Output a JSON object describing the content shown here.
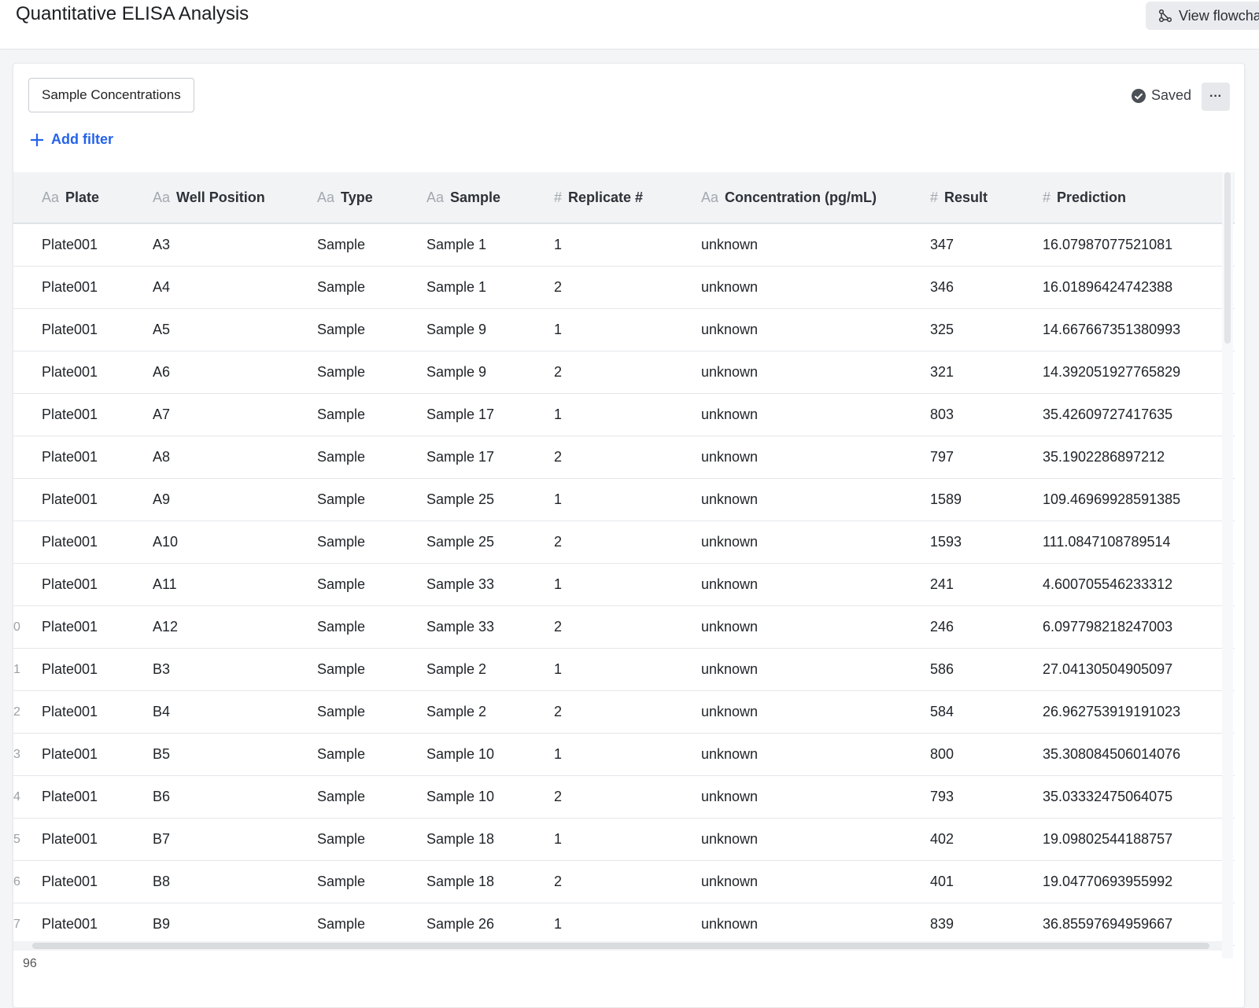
{
  "app": {
    "title": "Quantitative ELISA Analysis",
    "flowchart_button": "View flowchart"
  },
  "toolbar": {
    "view_name": "Sample Concentrations",
    "add_filter": "Add filter",
    "saved": "Saved",
    "more": "···"
  },
  "table": {
    "headers": [
      {
        "icon": "Aa",
        "label": "Plate"
      },
      {
        "icon": "Aa",
        "label": "Well Position"
      },
      {
        "icon": "Aa",
        "label": "Type"
      },
      {
        "icon": "Aa",
        "label": "Sample"
      },
      {
        "icon": "#",
        "label": "Replicate #"
      },
      {
        "icon": "Aa",
        "label": "Concentration (pg/mL)"
      },
      {
        "icon": "#",
        "label": "Result"
      },
      {
        "icon": "#",
        "label": "Prediction"
      }
    ],
    "rows": [
      {
        "idx": "",
        "plate": "Plate001",
        "well": "A3",
        "type": "Sample",
        "sample": "Sample 1",
        "replicate": "1",
        "concentration": "unknown",
        "result": "347",
        "prediction": "16.07987077521081"
      },
      {
        "idx": "",
        "plate": "Plate001",
        "well": "A4",
        "type": "Sample",
        "sample": "Sample 1",
        "replicate": "2",
        "concentration": "unknown",
        "result": "346",
        "prediction": "16.01896424742388"
      },
      {
        "idx": "",
        "plate": "Plate001",
        "well": "A5",
        "type": "Sample",
        "sample": "Sample 9",
        "replicate": "1",
        "concentration": "unknown",
        "result": "325",
        "prediction": "14.667667351380993"
      },
      {
        "idx": "",
        "plate": "Plate001",
        "well": "A6",
        "type": "Sample",
        "sample": "Sample 9",
        "replicate": "2",
        "concentration": "unknown",
        "result": "321",
        "prediction": "14.392051927765829"
      },
      {
        "idx": "",
        "plate": "Plate001",
        "well": "A7",
        "type": "Sample",
        "sample": "Sample 17",
        "replicate": "1",
        "concentration": "unknown",
        "result": "803",
        "prediction": "35.42609727417635"
      },
      {
        "idx": "",
        "plate": "Plate001",
        "well": "A8",
        "type": "Sample",
        "sample": "Sample 17",
        "replicate": "2",
        "concentration": "unknown",
        "result": "797",
        "prediction": "35.1902286897212"
      },
      {
        "idx": "",
        "plate": "Plate001",
        "well": "A9",
        "type": "Sample",
        "sample": "Sample 25",
        "replicate": "1",
        "concentration": "unknown",
        "result": "1589",
        "prediction": "109.46969928591385"
      },
      {
        "idx": "",
        "plate": "Plate001",
        "well": "A10",
        "type": "Sample",
        "sample": "Sample 25",
        "replicate": "2",
        "concentration": "unknown",
        "result": "1593",
        "prediction": "111.0847108789514"
      },
      {
        "idx": "",
        "plate": "Plate001",
        "well": "A11",
        "type": "Sample",
        "sample": "Sample 33",
        "replicate": "1",
        "concentration": "unknown",
        "result": "241",
        "prediction": "4.600705546233312"
      },
      {
        "idx": "0",
        "plate": "Plate001",
        "well": "A12",
        "type": "Sample",
        "sample": "Sample 33",
        "replicate": "2",
        "concentration": "unknown",
        "result": "246",
        "prediction": "6.097798218247003"
      },
      {
        "idx": "1",
        "plate": "Plate001",
        "well": "B3",
        "type": "Sample",
        "sample": "Sample 2",
        "replicate": "1",
        "concentration": "unknown",
        "result": "586",
        "prediction": "27.04130504905097"
      },
      {
        "idx": "2",
        "plate": "Plate001",
        "well": "B4",
        "type": "Sample",
        "sample": "Sample 2",
        "replicate": "2",
        "concentration": "unknown",
        "result": "584",
        "prediction": "26.962753919191023"
      },
      {
        "idx": "3",
        "plate": "Plate001",
        "well": "B5",
        "type": "Sample",
        "sample": "Sample 10",
        "replicate": "1",
        "concentration": "unknown",
        "result": "800",
        "prediction": "35.308084506014076"
      },
      {
        "idx": "4",
        "plate": "Plate001",
        "well": "B6",
        "type": "Sample",
        "sample": "Sample 10",
        "replicate": "2",
        "concentration": "unknown",
        "result": "793",
        "prediction": "35.03332475064075"
      },
      {
        "idx": "5",
        "plate": "Plate001",
        "well": "B7",
        "type": "Sample",
        "sample": "Sample 18",
        "replicate": "1",
        "concentration": "unknown",
        "result": "402",
        "prediction": "19.09802544188757"
      },
      {
        "idx": "6",
        "plate": "Plate001",
        "well": "B8",
        "type": "Sample",
        "sample": "Sample 18",
        "replicate": "2",
        "concentration": "unknown",
        "result": "401",
        "prediction": "19.04770693955992"
      },
      {
        "idx": "7",
        "plate": "Plate001",
        "well": "B9",
        "type": "Sample",
        "sample": "Sample 26",
        "replicate": "1",
        "concentration": "unknown",
        "result": "839",
        "prediction": "36.85597694959667"
      }
    ]
  },
  "footer": {
    "count": "96"
  },
  "colors": {
    "accent": "#2563eb",
    "header_bg": "#f1f3f5",
    "row_border": "#e4e6e9"
  }
}
